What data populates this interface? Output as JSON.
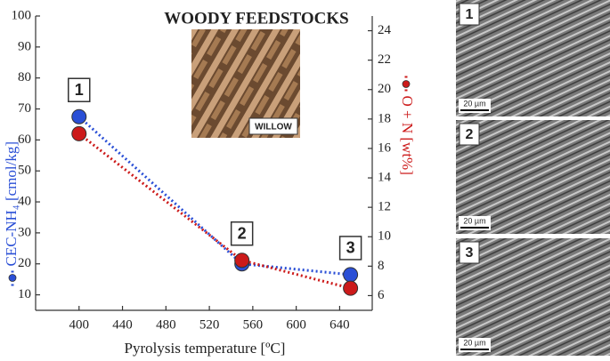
{
  "chart_data": {
    "type": "line",
    "title": "WOODY FEEDSTOCKS",
    "image_label": "WILLOW",
    "x_label": "Pyrolysis temperature [ºC]",
    "x": [
      400,
      550,
      650
    ],
    "series": [
      {
        "name": "CEC-NH₄ [cmol/kg]",
        "color": "#2a4fd6",
        "values": [
          67.5,
          20,
          16.5
        ]
      },
      {
        "name": "O + N [wt%]",
        "color": "#cc1a1a",
        "values": [
          17,
          8.4,
          6.5
        ],
        "axis": "y2"
      }
    ],
    "annotations": [
      "1",
      "2",
      "3"
    ],
    "xlim": [
      360,
      670
    ],
    "xticks": [
      400,
      440,
      480,
      520,
      560,
      600,
      640
    ],
    "ylim": [
      5,
      100
    ],
    "yticks": [
      10,
      20,
      30,
      40,
      50,
      60,
      70,
      80,
      90,
      100
    ],
    "y2lim": [
      5,
      25
    ],
    "y2ticks": [
      6,
      8,
      10,
      12,
      14,
      16,
      18,
      20,
      22,
      24
    ]
  },
  "sem_panels": [
    {
      "label": "1",
      "scale": "20 µm"
    },
    {
      "label": "2",
      "scale": "20 µm"
    },
    {
      "label": "3",
      "scale": "20 µm"
    }
  ]
}
